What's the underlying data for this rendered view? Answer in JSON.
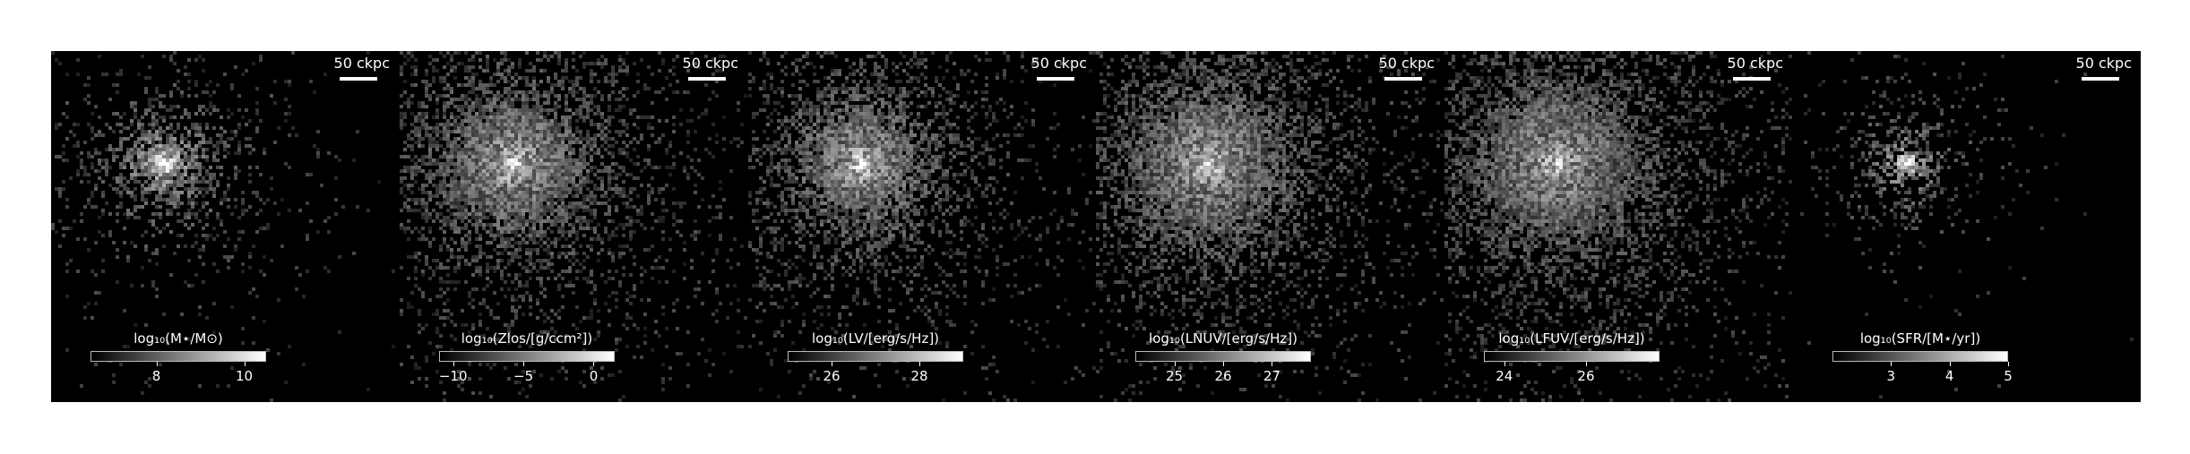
{
  "figure": {
    "background": "#000000",
    "scale_bar_text": "50 ckpc",
    "panels": [
      {
        "id": "stellar-mass",
        "colorbar_label": "log₁₀(M⋆/M⊙)",
        "range": [
          6.5,
          10.5
        ],
        "ticks": [
          {
            "value": 8,
            "label": "8"
          },
          {
            "value": 10,
            "label": "10"
          }
        ],
        "scatter": 0.55,
        "density": 0.28,
        "core": 0.55
      },
      {
        "id": "metal-column",
        "colorbar_label": "log₁₀(Zlos/[g/ccm²])",
        "range": [
          -11,
          1.5
        ],
        "ticks": [
          {
            "value": -10,
            "label": "−10"
          },
          {
            "value": -5,
            "label": "−5"
          },
          {
            "value": 0,
            "label": "0"
          }
        ],
        "scatter": 0.9,
        "density": 0.75,
        "core": 0.45
      },
      {
        "id": "v-band",
        "colorbar_label": "log₁₀(LV/[erg/s/Hz])",
        "range": [
          25,
          29
        ],
        "ticks": [
          {
            "value": 26,
            "label": "26"
          },
          {
            "value": 28,
            "label": "28"
          }
        ],
        "scatter": 0.85,
        "density": 0.6,
        "core": 0.4
      },
      {
        "id": "nuv-band",
        "colorbar_label": "log₁₀(LNUV/[erg/s/Hz])",
        "range": [
          24.2,
          27.8
        ],
        "ticks": [
          {
            "value": 25,
            "label": "25"
          },
          {
            "value": 26,
            "label": "26"
          },
          {
            "value": 27,
            "label": "27"
          }
        ],
        "scatter": 1.0,
        "density": 0.75,
        "core": 0.35
      },
      {
        "id": "fuv-band",
        "colorbar_label": "log₁₀(LFUV/[erg/s/Hz])",
        "range": [
          23.5,
          27.8
        ],
        "ticks": [
          {
            "value": 24,
            "label": "24"
          },
          {
            "value": 26,
            "label": "26"
          }
        ],
        "scatter": 1.0,
        "density": 0.85,
        "core": 0.3
      },
      {
        "id": "sfr",
        "colorbar_label": "log₁₀(SFR/[M⋆/yr])",
        "range": [
          2,
          5
        ],
        "ticks": [
          {
            "value": 3,
            "label": "3"
          },
          {
            "value": 4,
            "label": "4"
          },
          {
            "value": 5,
            "label": "5"
          }
        ],
        "scatter": 0.35,
        "density": 0.12,
        "core": 0.5
      }
    ]
  }
}
